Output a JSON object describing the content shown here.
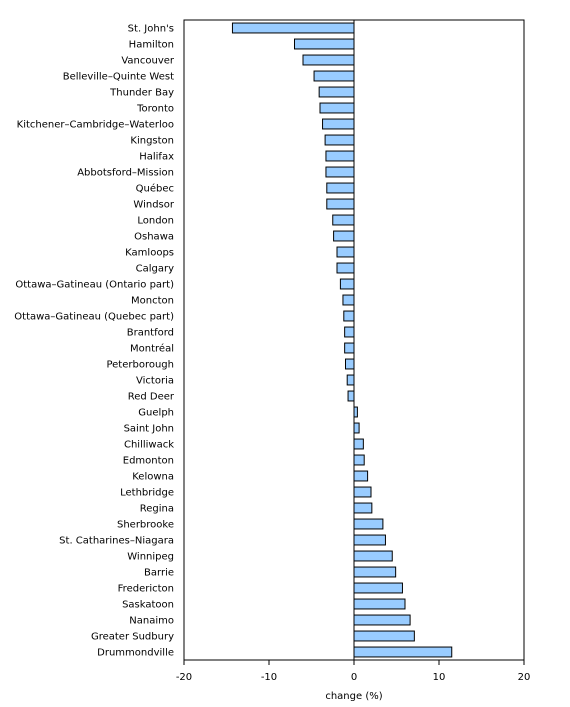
{
  "chart_data": {
    "type": "bar",
    "orientation": "horizontal",
    "title": "",
    "xlabel": "change (%)",
    "ylabel": "",
    "xlim": [
      -20,
      20
    ],
    "xticks": [
      -20,
      -10,
      0,
      10,
      20
    ],
    "grid": false,
    "bar_color": "#99ccff",
    "categories": [
      "St. John's",
      "Hamilton",
      "Vancouver",
      "Belleville–Quinte West",
      "Thunder Bay",
      "Toronto",
      "Kitchener–Cambridge–Waterloo",
      "Kingston",
      "Halifax",
      "Abbotsford–Mission",
      "Québec",
      "Windsor",
      "London",
      "Oshawa",
      "Kamloops",
      "Calgary",
      "Ottawa–Gatineau (Ontario part)",
      "Moncton",
      "Ottawa–Gatineau (Quebec part)",
      "Brantford",
      "Montréal",
      "Peterborough",
      "Victoria",
      "Red Deer",
      "Guelph",
      "Saint John",
      "Chilliwack",
      "Edmonton",
      "Kelowna",
      "Lethbridge",
      "Regina",
      "Sherbrooke",
      "St. Catharines–Niagara",
      "Winnipeg",
      "Barrie",
      "Fredericton",
      "Saskatoon",
      "Nanaimo",
      "Greater Sudbury",
      "Drummondville"
    ],
    "values": [
      -14.3,
      -7.0,
      -6.0,
      -4.7,
      -4.1,
      -4.0,
      -3.7,
      -3.4,
      -3.3,
      -3.3,
      -3.2,
      -3.2,
      -2.5,
      -2.4,
      -2.0,
      -2.0,
      -1.6,
      -1.3,
      -1.2,
      -1.1,
      -1.1,
      -1.0,
      -0.8,
      -0.7,
      0.4,
      0.6,
      1.1,
      1.2,
      1.6,
      2.0,
      2.1,
      3.4,
      3.7,
      4.5,
      4.9,
      5.7,
      6.0,
      6.6,
      7.1,
      11.5
    ]
  }
}
